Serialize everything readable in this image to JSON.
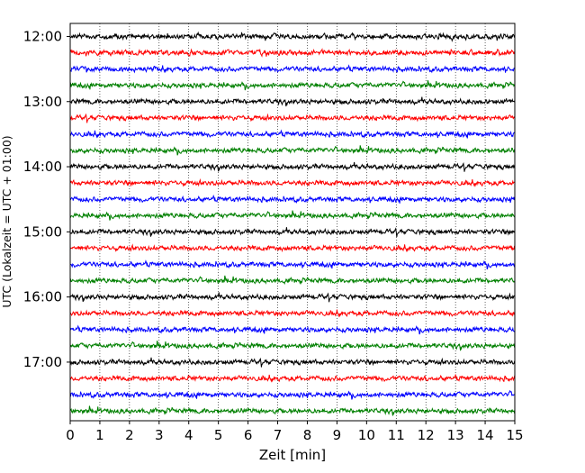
{
  "chart_data": {
    "type": "line",
    "xlabel": "Zeit  [min]",
    "ylabel": "UTC (Lokalzeit = UTC + 01:00)",
    "xlim": [
      0,
      15
    ],
    "xticks": [
      0,
      1,
      2,
      3,
      4,
      5,
      6,
      7,
      8,
      9,
      10,
      11,
      12,
      13,
      14,
      15
    ],
    "x_tick_labels": [
      "0",
      "1",
      "2",
      "3",
      "4",
      "5",
      "6",
      "7",
      "8",
      "9",
      "10",
      "11",
      "12",
      "13",
      "14",
      "15"
    ],
    "y_tick_labels": [
      "12:00",
      "13:00",
      "14:00",
      "15:00",
      "16:00",
      "17:00"
    ],
    "y_ticks_minutes": [
      720,
      780,
      840,
      900,
      960,
      1020
    ],
    "ylim_minutes": [
      1074,
      708
    ],
    "traces_start_minutes": 720,
    "trace_interval_minutes": 15,
    "trace_count": 24,
    "trace_color_cycle": [
      "#000000",
      "#ff0000",
      "#0000ff",
      "#008000"
    ],
    "grid": "vertical dotted at each minute"
  }
}
